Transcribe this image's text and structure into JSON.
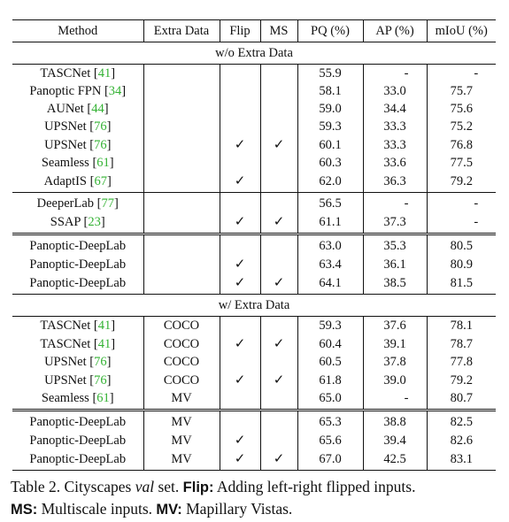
{
  "table": {
    "headers": [
      "Method",
      "Extra Data",
      "Flip",
      "MS",
      "PQ (%)",
      "AP (%)",
      "mIoU (%)"
    ],
    "check_mark": "✓",
    "sections": [
      {
        "title": "w/o Extra Data",
        "groups": [
          [
            {
              "method": "TASCNet",
              "ref": "41",
              "extra": "",
              "flip": false,
              "ms": false,
              "pq": "55.9",
              "ap": "-",
              "miou": "-"
            },
            {
              "method": "Panoptic FPN",
              "ref": "34",
              "extra": "",
              "flip": false,
              "ms": false,
              "pq": "58.1",
              "ap": "33.0",
              "miou": "75.7"
            },
            {
              "method": "AUNet",
              "ref": "44",
              "extra": "",
              "flip": false,
              "ms": false,
              "pq": "59.0",
              "ap": "34.4",
              "miou": "75.6"
            },
            {
              "method": "UPSNet",
              "ref": "76",
              "extra": "",
              "flip": false,
              "ms": false,
              "pq": "59.3",
              "ap": "33.3",
              "miou": "75.2"
            },
            {
              "method": "UPSNet",
              "ref": "76",
              "extra": "",
              "flip": true,
              "ms": true,
              "pq": "60.1",
              "ap": "33.3",
              "miou": "76.8"
            },
            {
              "method": "Seamless",
              "ref": "61",
              "extra": "",
              "flip": false,
              "ms": false,
              "pq": "60.3",
              "ap": "33.6",
              "miou": "77.5"
            },
            {
              "method": "AdaptIS",
              "ref": "67",
              "extra": "",
              "flip": true,
              "ms": false,
              "pq": "62.0",
              "ap": "36.3",
              "miou": "79.2"
            }
          ],
          [
            {
              "method": "DeeperLab",
              "ref": "77",
              "extra": "",
              "flip": false,
              "ms": false,
              "pq": "56.5",
              "ap": "-",
              "miou": "-"
            },
            {
              "method": "SSAP",
              "ref": "23",
              "extra": "",
              "flip": true,
              "ms": true,
              "pq": "61.1",
              "ap": "37.3",
              "miou": "-"
            }
          ],
          [
            {
              "method": "Panoptic-DeepLab",
              "ref": "",
              "extra": "",
              "flip": false,
              "ms": false,
              "pq": "63.0",
              "ap": "35.3",
              "miou": "80.5"
            },
            {
              "method": "Panoptic-DeepLab",
              "ref": "",
              "extra": "",
              "flip": true,
              "ms": false,
              "pq": "63.4",
              "ap": "36.1",
              "miou": "80.9"
            },
            {
              "method": "Panoptic-DeepLab",
              "ref": "",
              "extra": "",
              "flip": true,
              "ms": true,
              "pq": "64.1",
              "ap": "38.5",
              "miou": "81.5",
              "bold": true
            }
          ]
        ]
      },
      {
        "title": "w/ Extra Data",
        "groups": [
          [
            {
              "method": "TASCNet",
              "ref": "41",
              "extra": "COCO",
              "flip": false,
              "ms": false,
              "pq": "59.3",
              "ap": "37.6",
              "miou": "78.1"
            },
            {
              "method": "TASCNet",
              "ref": "41",
              "extra": "COCO",
              "flip": true,
              "ms": true,
              "pq": "60.4",
              "ap": "39.1",
              "miou": "78.7"
            },
            {
              "method": "UPSNet",
              "ref": "76",
              "extra": "COCO",
              "flip": false,
              "ms": false,
              "pq": "60.5",
              "ap": "37.8",
              "miou": "77.8"
            },
            {
              "method": "UPSNet",
              "ref": "76",
              "extra": "COCO",
              "flip": true,
              "ms": true,
              "pq": "61.8",
              "ap": "39.0",
              "miou": "79.2"
            },
            {
              "method": "Seamless",
              "ref": "61",
              "extra": "MV",
              "flip": false,
              "ms": false,
              "pq": "65.0",
              "ap": "-",
              "miou": "80.7"
            }
          ],
          [
            {
              "method": "Panoptic-DeepLab",
              "ref": "",
              "extra": "MV",
              "flip": false,
              "ms": false,
              "pq": "65.3",
              "ap": "38.8",
              "miou": "82.5"
            },
            {
              "method": "Panoptic-DeepLab",
              "ref": "",
              "extra": "MV",
              "flip": true,
              "ms": false,
              "pq": "65.6",
              "ap": "39.4",
              "miou": "82.6"
            },
            {
              "method": "Panoptic-DeepLab",
              "ref": "",
              "extra": "MV",
              "flip": true,
              "ms": true,
              "pq": "67.0",
              "ap": "42.5",
              "miou": "83.1",
              "bold": true
            }
          ]
        ]
      }
    ]
  },
  "caption": {
    "prefix": "Table 2. Cityscapes ",
    "italic": "val",
    "suffix": " set.",
    "items": [
      {
        "label": "Flip:",
        "text": " Adding left-right flipped inputs."
      },
      {
        "label": "MS:",
        "text": " Multiscale inputs."
      },
      {
        "label": "MV:",
        "text": " Mapillary Vistas."
      }
    ]
  }
}
